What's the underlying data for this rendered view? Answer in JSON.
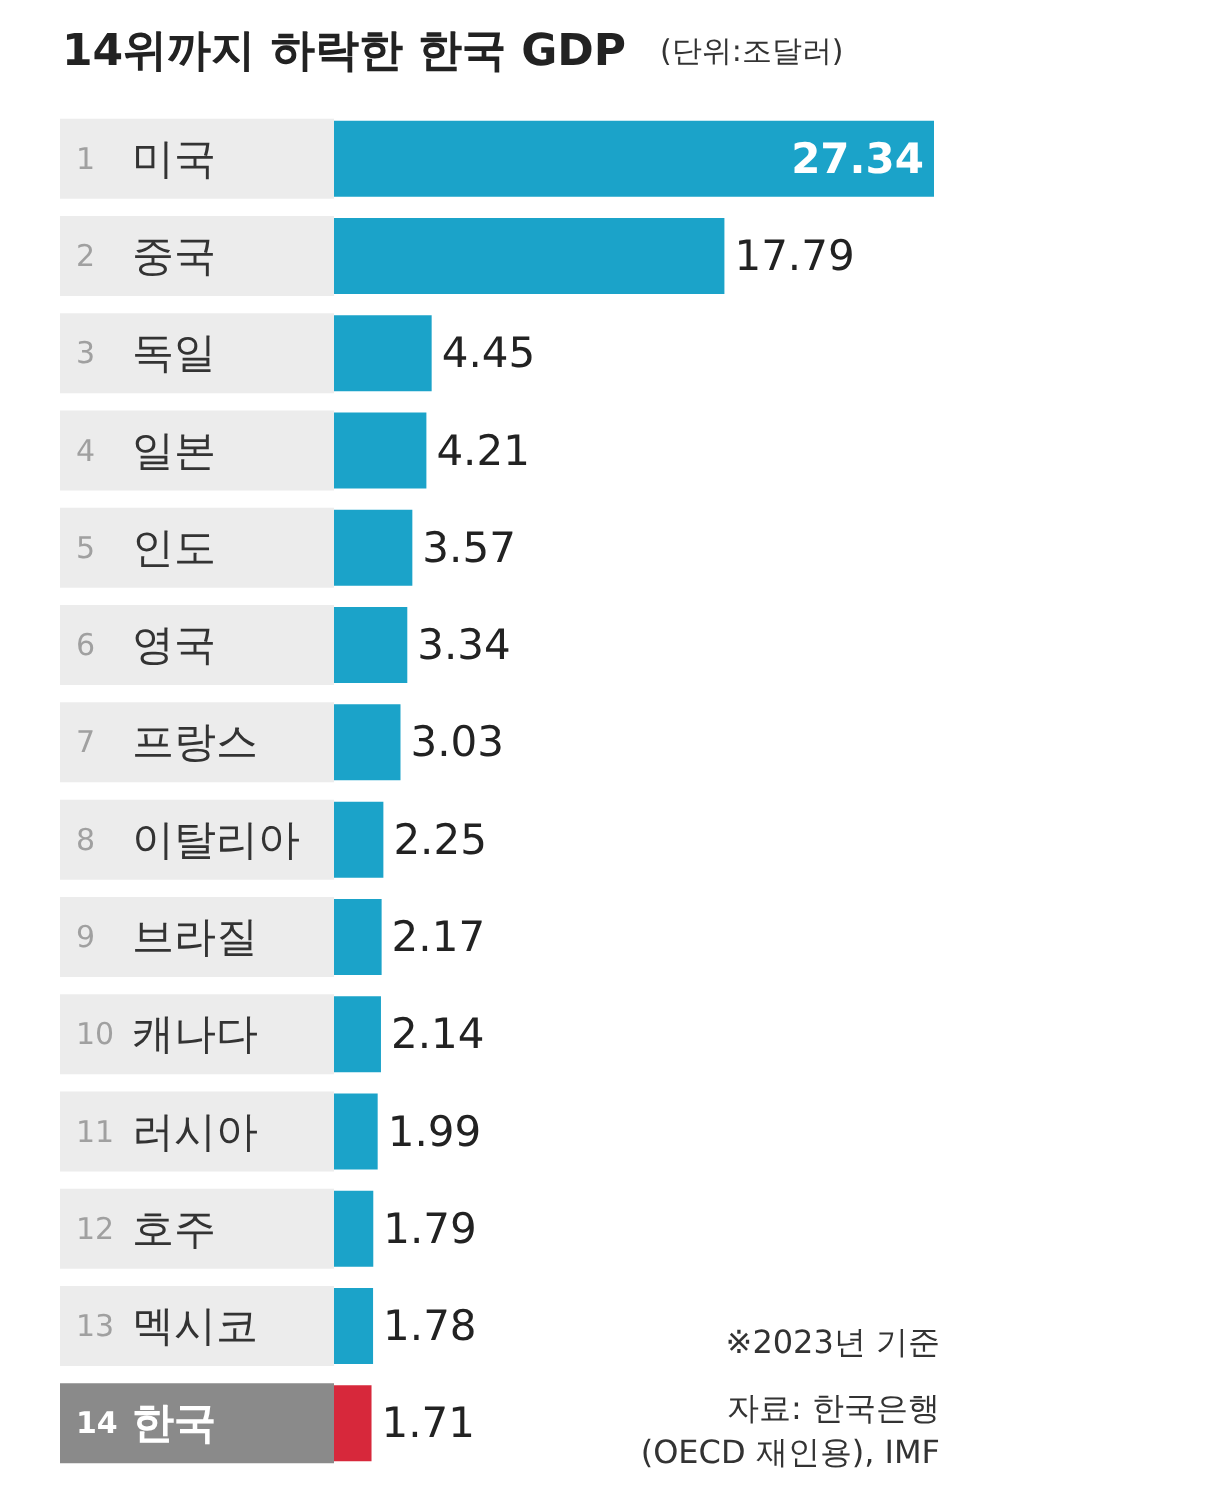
{
  "chart_data": {
    "type": "bar",
    "orientation": "horizontal",
    "title": "14위까지 하락한 한국 GDP",
    "subtitle": "(단위:조달러)",
    "categories": [
      "1 미국",
      "2 중국",
      "3 독일",
      "4 일본",
      "5 인도",
      "6 영국",
      "7 프랑스",
      "8 이탈리아",
      "9 브라질",
      "10 캐나다",
      "11 러시아",
      "12 호주",
      "13 멕시코",
      "14 한국"
    ],
    "values": [
      27.34,
      17.79,
      4.45,
      4.21,
      3.57,
      3.34,
      3.03,
      2.25,
      2.17,
      2.14,
      1.99,
      1.79,
      1.78,
      1.71
    ],
    "colors": [
      "#1ba3c9",
      "#1ba3c9",
      "#1ba3c9",
      "#1ba3c9",
      "#1ba3c9",
      "#1ba3c9",
      "#1ba3c9",
      "#1ba3c9",
      "#1ba3c9",
      "#1ba3c9",
      "#1ba3c9",
      "#1ba3c9",
      "#1ba3c9",
      "#d7283b"
    ],
    "data_labels": true,
    "annotations": [
      "※2023년 기준",
      "자료: 한국은행\n(OECD 재인용), IMF"
    ]
  }
}
